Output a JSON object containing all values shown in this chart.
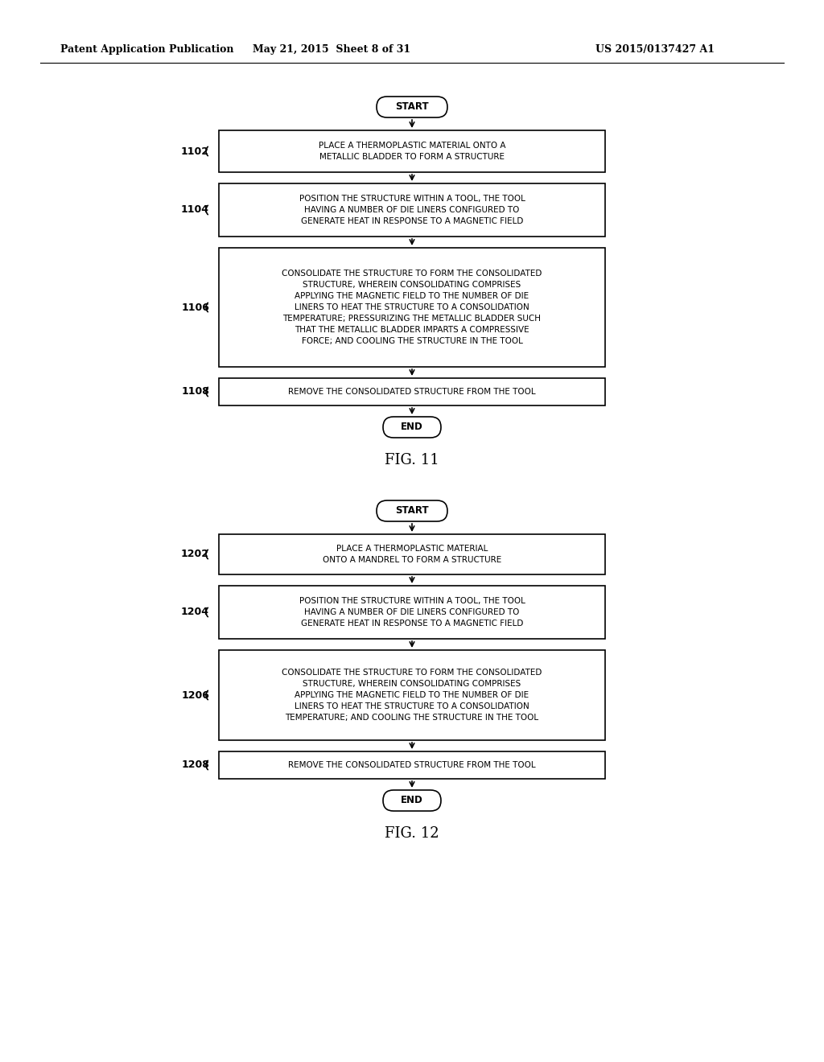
{
  "bg_color": "#ffffff",
  "header_left": "Patent Application Publication",
  "header_center": "May 21, 2015  Sheet 8 of 31",
  "header_right": "US 2015/0137427 A1",
  "fig11_title": "FIG. 11",
  "fig12_title": "FIG. 12",
  "fig11": {
    "start_label": "START",
    "end_label": "END",
    "steps": [
      {
        "id": "1102",
        "text": "PLACE A THERMOPLASTIC MATERIAL ONTO A\nMETALLIC BLADDER TO FORM A STRUCTURE"
      },
      {
        "id": "1104",
        "text": "POSITION THE STRUCTURE WITHIN A TOOL, THE TOOL\nHAVING A NUMBER OF DIE LINERS CONFIGURED TO\nGENERATE HEAT IN RESPONSE TO A MAGNETIC FIELD"
      },
      {
        "id": "1106",
        "text": "CONSOLIDATE THE STRUCTURE TO FORM THE CONSOLIDATED\nSTRUCTURE, WHEREIN CONSOLIDATING COMPRISES\nAPPLYING THE MAGNETIC FIELD TO THE NUMBER OF DIE\nLINERS TO HEAT THE STRUCTURE TO A CONSOLIDATION\nTEMPERATURE; PRESSURIZING THE METALLIC BLADDER SUCH\nTHAT THE METALLIC BLADDER IMPARTS A COMPRESSIVE\nFORCE; AND COOLING THE STRUCTURE IN THE TOOL"
      },
      {
        "id": "1108",
        "text": "REMOVE THE CONSOLIDATED STRUCTURE FROM THE TOOL"
      }
    ]
  },
  "fig12": {
    "start_label": "START",
    "end_label": "END",
    "steps": [
      {
        "id": "1202",
        "text": "PLACE A THERMOPLASTIC MATERIAL\nONTO A MANDREL TO FORM A STRUCTURE"
      },
      {
        "id": "1204",
        "text": "POSITION THE STRUCTURE WITHIN A TOOL, THE TOOL\nHAVING A NUMBER OF DIE LINERS CONFIGURED TO\nGENERATE HEAT IN RESPONSE TO A MAGNETIC FIELD"
      },
      {
        "id": "1206",
        "text": "CONSOLIDATE THE STRUCTURE TO FORM THE CONSOLIDATED\nSTRUCTURE, WHEREIN CONSOLIDATING COMPRISES\nAPPLYING THE MAGNETIC FIELD TO THE NUMBER OF DIE\nLINERS TO HEAT THE STRUCTURE TO A CONSOLIDATION\nTEMPERATURE; AND COOLING THE STRUCTURE IN THE TOOL"
      },
      {
        "id": "1208",
        "text": "REMOVE THE CONSOLIDATED STRUCTURE FROM THE TOOL"
      }
    ]
  }
}
